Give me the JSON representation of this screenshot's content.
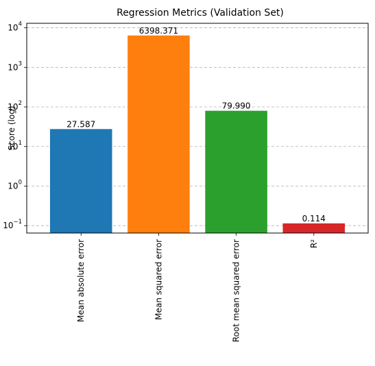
{
  "chart_data": {
    "type": "bar",
    "title": "Regression Metrics (Validation Set)",
    "xlabel": "",
    "ylabel": "Score (log)",
    "yscale": "log",
    "ylim": [
      0.065,
      13000
    ],
    "grid": "y-dashed",
    "legend": "none",
    "categories": [
      "Mean absolute error",
      "Mean squared error",
      "Root mean squared error",
      "R²"
    ],
    "values": [
      27.587,
      6398.371,
      79.99,
      0.114
    ],
    "value_labels": [
      "27.587",
      "6398.371",
      "79.990",
      "0.114"
    ],
    "colors": [
      "#1f77b4",
      "#ff7f0e",
      "#2ca02c",
      "#d62728"
    ],
    "y_ticks": [
      {
        "value": 0.1,
        "base": "10",
        "exp": "−1"
      },
      {
        "value": 1,
        "base": "10",
        "exp": "0"
      },
      {
        "value": 10,
        "base": "10",
        "exp": "1"
      },
      {
        "value": 100,
        "base": "10",
        "exp": "2"
      },
      {
        "value": 1000,
        "base": "10",
        "exp": "3"
      },
      {
        "value": 10000,
        "base": "10",
        "exp": "4"
      }
    ]
  }
}
